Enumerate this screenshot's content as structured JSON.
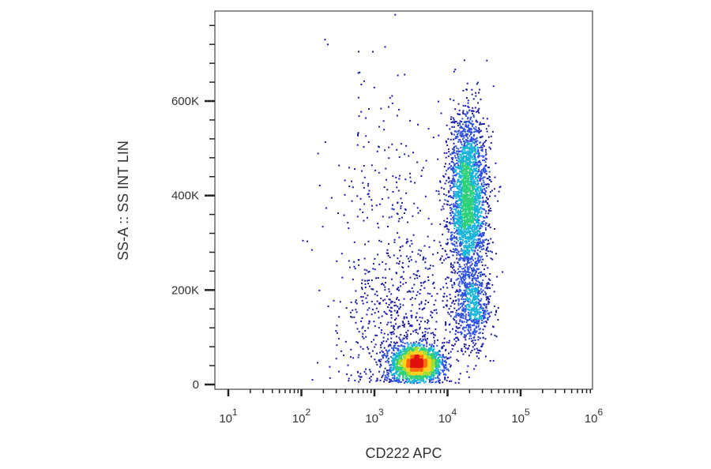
{
  "chart_data": {
    "type": "scatter",
    "subtype": "flow cytometry density dot plot",
    "xlabel": "CD222 APC",
    "ylabel": "SS-A :: SS INT LIN",
    "x_scale": "log",
    "y_scale": "linear",
    "xlim": [
      10,
      1000000
    ],
    "ylim": [
      0,
      760000
    ],
    "x_major_ticks": [
      {
        "value": 10,
        "base": "10",
        "exp": "1"
      },
      {
        "value": 100,
        "base": "10",
        "exp": "2"
      },
      {
        "value": 1000,
        "base": "10",
        "exp": "3"
      },
      {
        "value": 10000,
        "base": "10",
        "exp": "4"
      },
      {
        "value": 100000,
        "base": "10",
        "exp": "5"
      },
      {
        "value": 1000000,
        "base": "10",
        "exp": "6"
      }
    ],
    "y_major_ticks": [
      {
        "value": 0,
        "label": "0"
      },
      {
        "value": 200000,
        "label": "200K"
      },
      {
        "value": 400000,
        "label": "400K"
      },
      {
        "value": 600000,
        "label": "600K"
      }
    ],
    "y_minor_step": 40000,
    "grid": false,
    "legend": "none",
    "populations": [
      {
        "x_center": 3800,
        "x_log_sd": 0.17,
        "y_center": 45000,
        "y_sd": 18000,
        "share": 0.34
      },
      {
        "x_center": 19000,
        "x_log_sd": 0.13,
        "y_center": 395000,
        "y_sd": 90000,
        "share": 0.42
      },
      {
        "x_center": 22000,
        "x_log_sd": 0.13,
        "y_center": 160000,
        "y_sd": 45000,
        "share": 0.1
      },
      {
        "x_center": 2500,
        "x_log_sd": 0.38,
        "y_center": 110000,
        "y_sd": 85000,
        "share": 0.09
      },
      {
        "x_center": 1500,
        "x_log_sd": 0.45,
        "y_center": 320000,
        "y_sd": 170000,
        "share": 0.05
      }
    ],
    "color_scale": [
      "#1a1aa8",
      "#2f4fe0",
      "#19b4d8",
      "#2fd07a",
      "#a4dc2c",
      "#ffd21e",
      "#ff6a10",
      "#e01010"
    ]
  }
}
